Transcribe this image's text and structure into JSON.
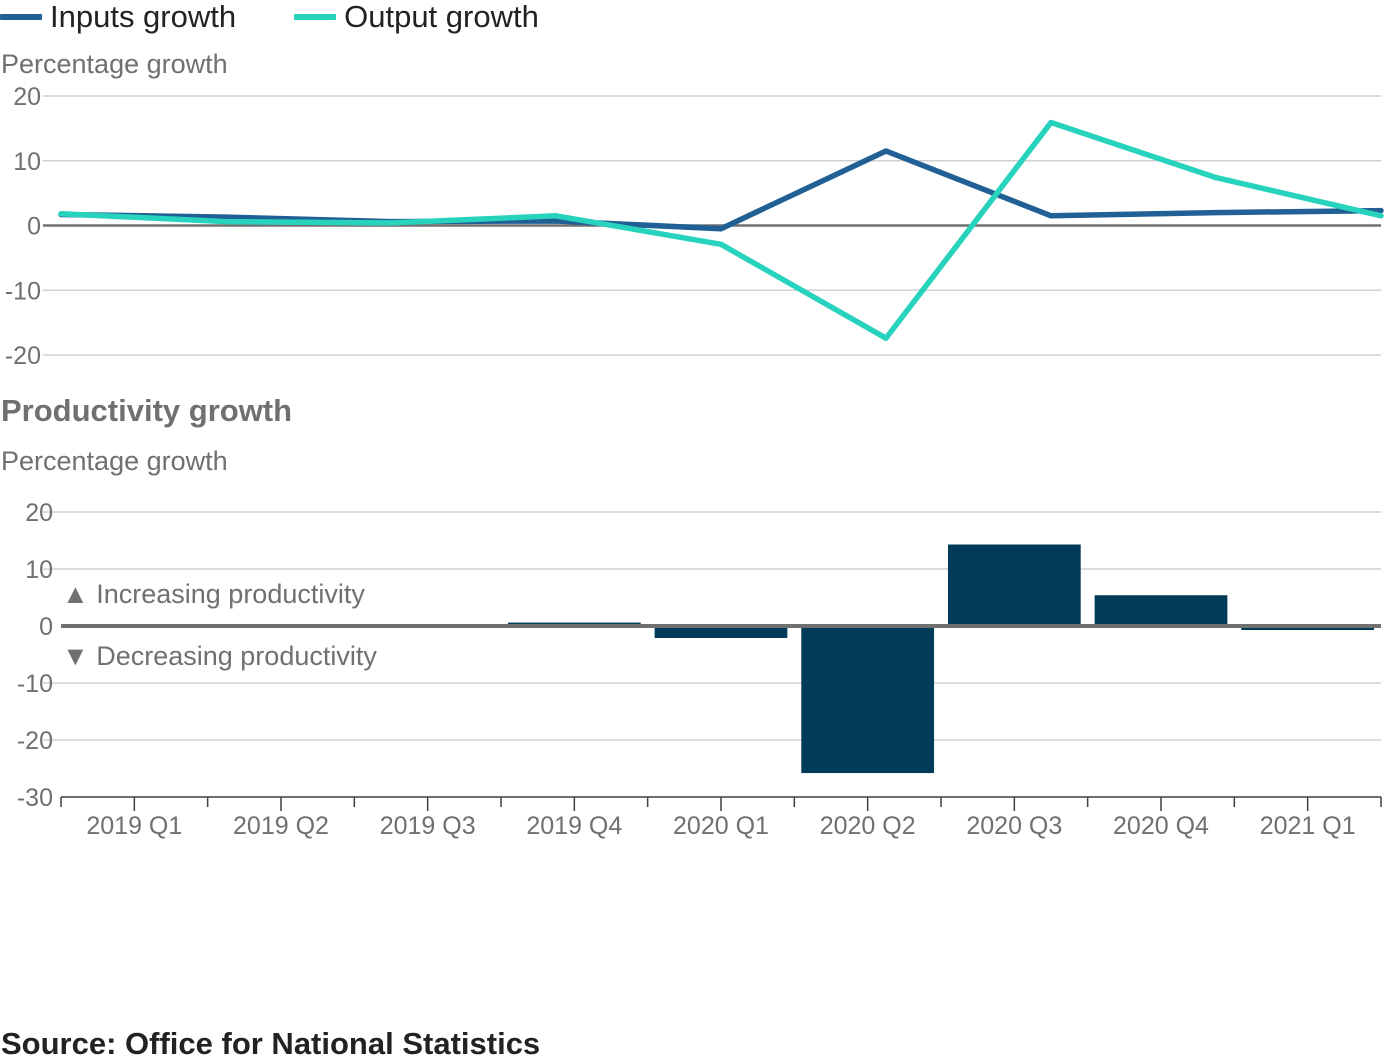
{
  "legend": {
    "items": [
      {
        "label": "Inputs growth",
        "color": "#206095"
      },
      {
        "label": "Output growth",
        "color": "#27d3bc"
      }
    ]
  },
  "top_panel": {
    "ylabel": "Percentage growth"
  },
  "bottom_panel": {
    "title": "Productivity growth",
    "ylabel": "Percentage growth",
    "annotation_up": "▲ Increasing productivity",
    "annotation_down": "▼ Decreasing productivity"
  },
  "source": "Source: Office for National Statistics",
  "chart_data": [
    {
      "type": "line",
      "categories": [
        "2019 Q1",
        "2019 Q2",
        "2019 Q3",
        "2019 Q4",
        "2020 Q1",
        "2020 Q2",
        "2020 Q3",
        "2020 Q4",
        "2021 Q1"
      ],
      "ylabel": "Percentage growth",
      "ylim": [
        -20,
        20
      ],
      "yticks": [
        20,
        10,
        0,
        -10,
        -20
      ],
      "grid": true,
      "legend_position": "top-left",
      "series": [
        {
          "name": "Inputs growth",
          "color": "#206095",
          "values": [
            1.7,
            1.3,
            0.6,
            0.7,
            -0.5,
            11.5,
            1.5,
            2.0,
            2.3
          ]
        },
        {
          "name": "Output growth",
          "color": "#27d3bc",
          "values": [
            1.8,
            0.6,
            0.4,
            1.5,
            -2.9,
            -17.4,
            15.9,
            7.4,
            1.5
          ]
        }
      ]
    },
    {
      "type": "bar",
      "title": "Productivity growth",
      "categories": [
        "2019 Q1",
        "2019 Q2",
        "2019 Q3",
        "2019 Q4",
        "2020 Q1",
        "2020 Q2",
        "2020 Q3",
        "2020 Q4",
        "2021 Q1"
      ],
      "ylabel": "Percentage growth",
      "ylim": [
        -30,
        20
      ],
      "yticks": [
        20,
        10,
        0,
        -10,
        -20,
        -30
      ],
      "grid": true,
      "color": "#003c57",
      "values": [
        0.1,
        -0.3,
        -0.3,
        0.6,
        -2.1,
        -25.8,
        14.3,
        5.4,
        -0.7
      ]
    }
  ]
}
